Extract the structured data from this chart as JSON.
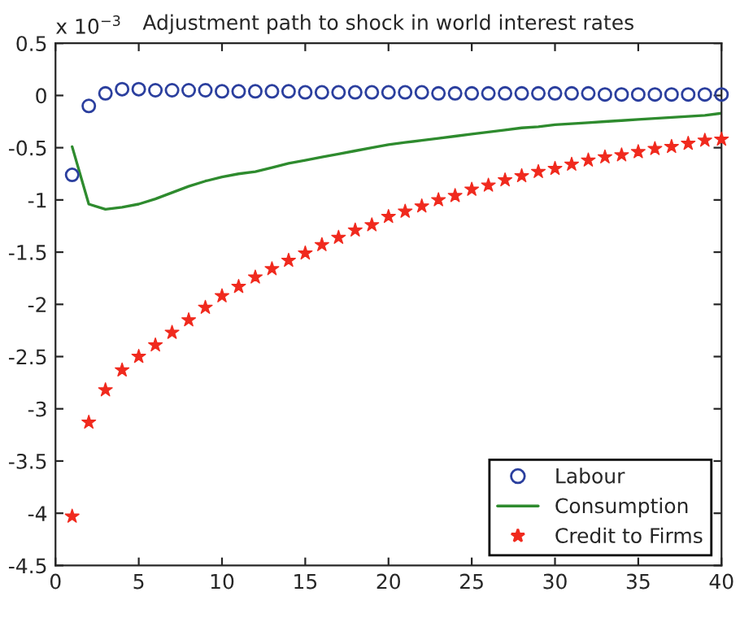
{
  "chart_data": {
    "type": "line",
    "title": "Adjustment path to shock in world interest rates",
    "annotations": [
      "x 10$^{−3}$"
    ],
    "x": [
      1,
      2,
      3,
      4,
      5,
      6,
      7,
      8,
      9,
      10,
      11,
      12,
      13,
      14,
      15,
      16,
      17,
      18,
      19,
      20,
      21,
      22,
      23,
      24,
      25,
      26,
      27,
      28,
      29,
      30,
      31,
      32,
      33,
      34,
      35,
      36,
      37,
      38,
      39,
      40
    ],
    "series": [
      {
        "name": "Labour",
        "type": "scatter",
        "marker": "circle",
        "color": "#2b3f9e",
        "values": [
          -0.76,
          -0.1,
          0.02,
          0.06,
          0.06,
          0.05,
          0.05,
          0.05,
          0.05,
          0.04,
          0.04,
          0.04,
          0.04,
          0.04,
          0.03,
          0.03,
          0.03,
          0.03,
          0.03,
          0.03,
          0.03,
          0.03,
          0.02,
          0.02,
          0.02,
          0.02,
          0.02,
          0.02,
          0.02,
          0.02,
          0.02,
          0.02,
          0.01,
          0.01,
          0.01,
          0.01,
          0.01,
          0.01,
          0.01,
          0.01
        ]
      },
      {
        "name": "Consumption",
        "color": "#2e8b2e",
        "values": [
          -0.49,
          -1.04,
          -1.09,
          -1.07,
          -1.04,
          -0.99,
          -0.93,
          -0.87,
          -0.82,
          -0.78,
          -0.75,
          -0.73,
          -0.69,
          -0.65,
          -0.62,
          -0.59,
          -0.56,
          -0.53,
          -0.5,
          -0.47,
          -0.45,
          -0.43,
          -0.41,
          -0.39,
          -0.37,
          -0.35,
          -0.33,
          -0.31,
          -0.3,
          -0.28,
          -0.27,
          -0.26,
          -0.25,
          -0.24,
          -0.23,
          -0.22,
          -0.21,
          -0.2,
          -0.19,
          -0.17
        ]
      },
      {
        "name": "Credit to Firms",
        "type": "scatter",
        "marker": "star",
        "color": "#f02a1e",
        "values": [
          -4.03,
          -3.13,
          -2.82,
          -2.63,
          -2.5,
          -2.39,
          -2.27,
          -2.15,
          -2.03,
          -1.92,
          -1.83,
          -1.74,
          -1.66,
          -1.58,
          -1.51,
          -1.43,
          -1.36,
          -1.29,
          -1.24,
          -1.16,
          -1.11,
          -1.06,
          -1.0,
          -0.96,
          -0.9,
          -0.86,
          -0.81,
          -0.77,
          -0.73,
          -0.7,
          -0.66,
          -0.62,
          -0.59,
          -0.57,
          -0.54,
          -0.51,
          -0.49,
          -0.46,
          -0.43,
          -0.42
        ]
      }
    ],
    "xlim": [
      0,
      40
    ],
    "xticks": [
      0,
      5,
      10,
      15,
      20,
      25,
      30,
      35,
      40
    ],
    "ylim": [
      -4.5,
      0.5
    ],
    "yticks": [
      -4.5,
      -4,
      -3.5,
      -3,
      -2.5,
      -2,
      -1.5,
      -1,
      -0.5,
      0,
      0.5
    ],
    "grid": false,
    "legend": "bottom right"
  }
}
